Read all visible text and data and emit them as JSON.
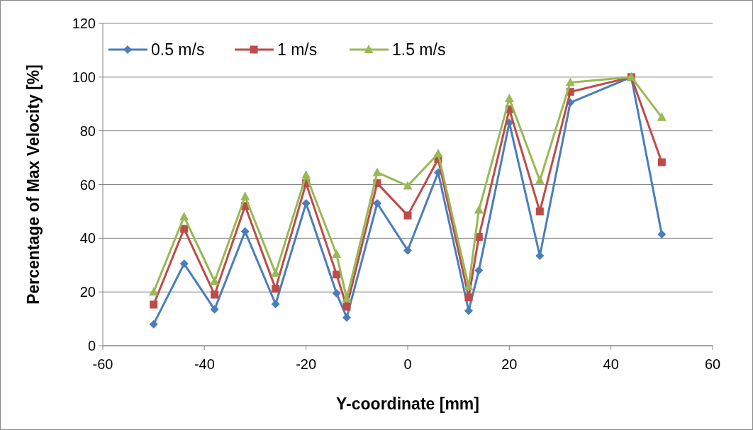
{
  "chart_data": {
    "type": "line",
    "xlabel": "Y-coordinate [mm]",
    "ylabel": "Percentage of Max Velocity [%]",
    "x": [
      -50,
      -44,
      -38,
      -32,
      -26,
      -20,
      -14,
      -12,
      -6,
      0,
      6,
      12,
      14,
      20,
      26,
      32,
      44,
      50
    ],
    "series": [
      {
        "name": "0.5 m/s",
        "color": "#4a7ebb",
        "marker": "diamond",
        "values": [
          8,
          30.5,
          13.5,
          42.5,
          15.5,
          53,
          19.5,
          10.5,
          53,
          35.5,
          64.5,
          13,
          28,
          83,
          33.5,
          90.5,
          100,
          41.5
        ]
      },
      {
        "name": "1 m/s",
        "color": "#be4b48",
        "marker": "square",
        "values": [
          15.3,
          43.5,
          19,
          52,
          21.2,
          60.5,
          26.5,
          14.5,
          60.5,
          48.5,
          69.5,
          18,
          40.5,
          88,
          50,
          94.5,
          100,
          68.3
        ]
      },
      {
        "name": "1.5 m/s",
        "color": "#98b954",
        "marker": "triangle",
        "values": [
          20,
          48,
          24,
          55.5,
          27,
          63.5,
          34,
          17.5,
          64.5,
          59.5,
          71.5,
          22,
          50.5,
          92,
          61.5,
          98,
          100,
          85
        ]
      }
    ],
    "xlim": [
      -60,
      60
    ],
    "xticks": [
      -60,
      -40,
      -20,
      0,
      20,
      40,
      60
    ],
    "ylim": [
      0,
      120
    ],
    "yticks": [
      0,
      20,
      40,
      60,
      80,
      100,
      120
    ],
    "grid": "y",
    "legend": "top left"
  }
}
